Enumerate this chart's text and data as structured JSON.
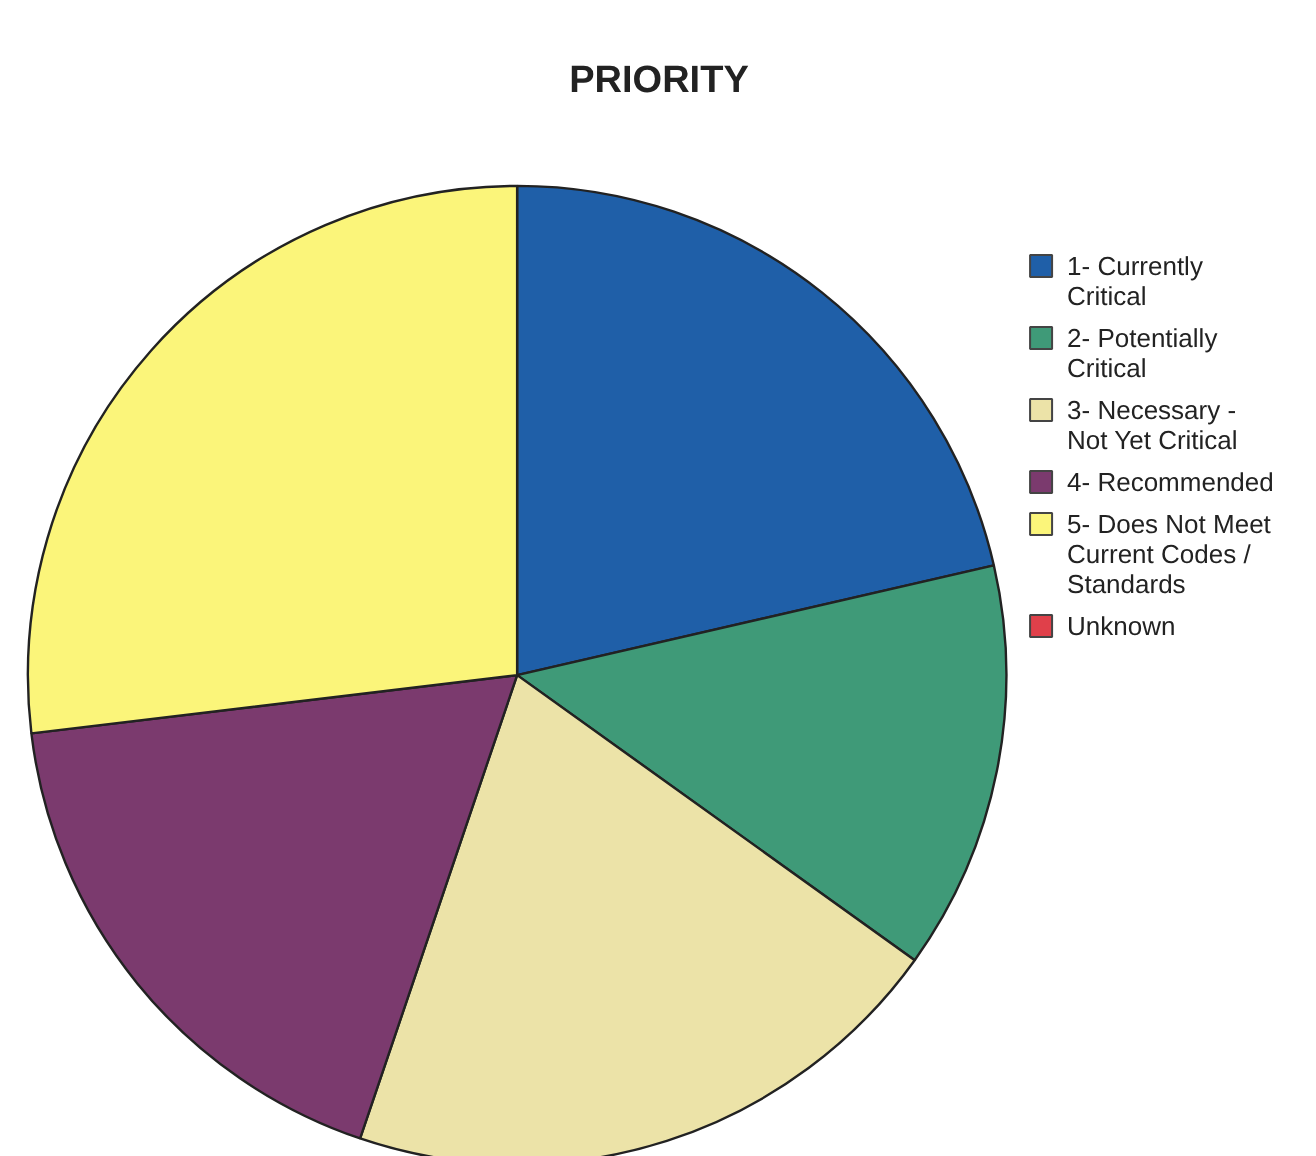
{
  "chart_data": {
    "type": "pie",
    "title": "PRIORITY",
    "categories": [
      "1- Currently Critical",
      "2- Potentially Critical",
      "3- Necessary - Not Yet Critical",
      "4- Recommended",
      "5- Does Not Meet Current Codes / Standards",
      "Unknown"
    ],
    "values": [
      21.4,
      13.5,
      20.3,
      17.9,
      26.9,
      0
    ],
    "colors": [
      "#1f5fa8",
      "#3f9a78",
      "#ece3a8",
      "#7b3a6e",
      "#fbf57a",
      "#e0404a"
    ],
    "legend": "right"
  }
}
